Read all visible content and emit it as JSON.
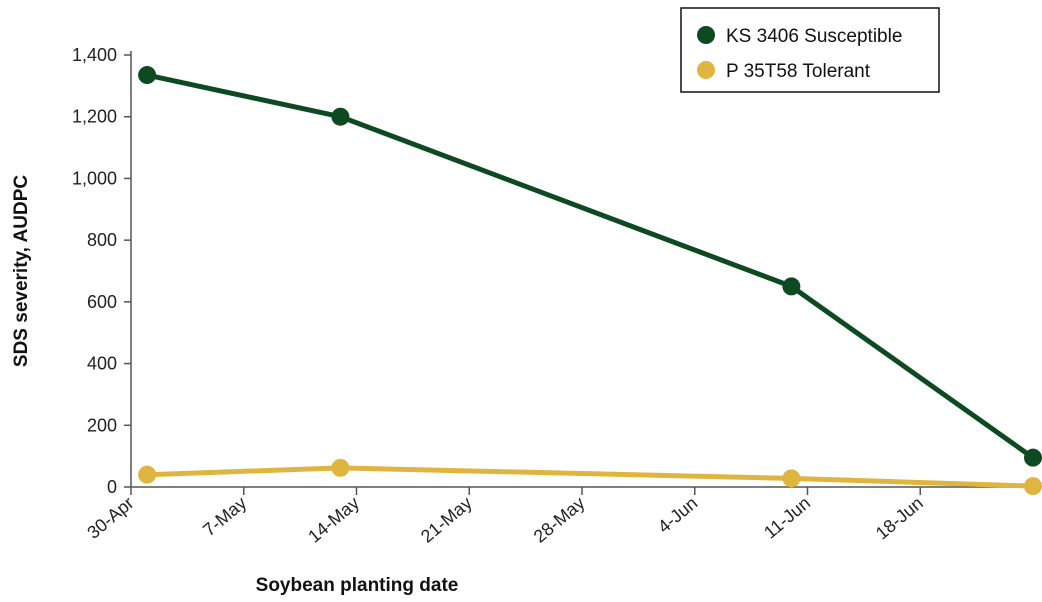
{
  "chart_data": {
    "type": "line",
    "title": "",
    "xlabel": "Soybean planting date",
    "ylabel": "SDS severity, AUDPC",
    "x_ticks": [
      "30-Apr",
      "7-May",
      "14-May",
      "21-May",
      "28-May",
      "4-Jun",
      "11-Jun",
      "18-Jun"
    ],
    "x_tick_dates": [
      "2013-04-30",
      "2013-05-07",
      "2013-05-14",
      "2013-05-21",
      "2013-05-28",
      "2013-06-04",
      "2013-06-11",
      "2013-06-18"
    ],
    "xlim": [
      "2013-04-30",
      "2013-06-25"
    ],
    "y_ticks": [
      "0",
      "200",
      "400",
      "600",
      "800",
      "1,000",
      "1,200",
      "1,400"
    ],
    "ylim": [
      0,
      1400
    ],
    "grid": false,
    "legend_position": "top-right",
    "series": [
      {
        "name": "KS 3406 Susceptible",
        "color": "#0d4a21",
        "points": [
          {
            "x": "2013-05-01",
            "y": 1335
          },
          {
            "x": "2013-05-13",
            "y": 1200
          },
          {
            "x": "2013-06-10",
            "y": 650
          },
          {
            "x": "2013-06-25",
            "y": 95
          }
        ]
      },
      {
        "name": "P 35T58 Tolerant",
        "color": "#e0b53f",
        "points": [
          {
            "x": "2013-05-01",
            "y": 40
          },
          {
            "x": "2013-05-13",
            "y": 62
          },
          {
            "x": "2013-06-10",
            "y": 28
          },
          {
            "x": "2013-06-25",
            "y": 3
          }
        ]
      }
    ]
  }
}
